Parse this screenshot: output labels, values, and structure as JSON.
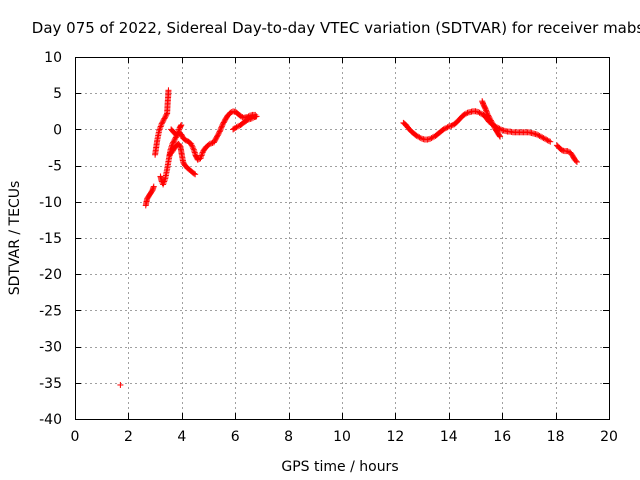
{
  "chart_data": {
    "type": "scatter",
    "title": "Day 075 of 2022, Sidereal Day-to-day VTEC variation (SDTVAR) for receiver mabs",
    "xlabel": "GPS time / hours",
    "ylabel": "SDTVAR / TECUs",
    "xlim": [
      0,
      20
    ],
    "ylim": [
      -40,
      10
    ],
    "xticks": [
      0,
      2,
      4,
      6,
      8,
      10,
      12,
      14,
      16,
      18,
      20
    ],
    "yticks": [
      -40,
      -35,
      -30,
      -25,
      -20,
      -15,
      -10,
      -5,
      0,
      5,
      10
    ],
    "grid": true,
    "marker": "+",
    "series_color": "#ff0000",
    "segments": [
      [
        [
          1.7,
          -35.3
        ]
      ],
      [
        [
          2.65,
          -10.5
        ],
        [
          2.7,
          -9.6
        ],
        [
          2.8,
          -9.0
        ],
        [
          2.9,
          -8.4
        ],
        [
          2.95,
          -7.9
        ]
      ],
      [
        [
          3.0,
          -3.5
        ],
        [
          3.08,
          -1.5
        ],
        [
          3.15,
          -0.2
        ],
        [
          3.25,
          0.8
        ],
        [
          3.35,
          1.5
        ],
        [
          3.45,
          2.2
        ],
        [
          3.47,
          3.6
        ],
        [
          3.49,
          4.6
        ],
        [
          3.5,
          5.4
        ]
      ],
      [
        [
          3.2,
          -6.5
        ],
        [
          3.25,
          -7.2
        ],
        [
          3.3,
          -7.6
        ],
        [
          3.38,
          -6.8
        ],
        [
          3.45,
          -5.5
        ],
        [
          3.52,
          -4.0
        ],
        [
          3.58,
          -2.8
        ],
        [
          3.65,
          -2.0
        ],
        [
          3.75,
          -1.3
        ],
        [
          3.85,
          -0.6
        ],
        [
          3.92,
          0.2
        ],
        [
          3.98,
          0.6
        ]
      ],
      [
        [
          3.55,
          -3.5
        ],
        [
          3.65,
          -3.0
        ],
        [
          3.72,
          -2.6
        ],
        [
          3.8,
          -2.2
        ],
        [
          3.88,
          -2.0
        ],
        [
          3.95,
          -2.4
        ],
        [
          4.0,
          -3.5
        ],
        [
          4.05,
          -4.5
        ],
        [
          4.12,
          -5.0
        ],
        [
          4.2,
          -5.3
        ],
        [
          4.3,
          -5.6
        ],
        [
          4.42,
          -6.0
        ],
        [
          4.5,
          -6.2
        ]
      ],
      [
        [
          3.6,
          0.0
        ],
        [
          3.7,
          -0.4
        ],
        [
          3.8,
          -0.8
        ],
        [
          3.9,
          -0.4
        ],
        [
          3.98,
          -0.7
        ],
        [
          4.05,
          -1.2
        ],
        [
          4.15,
          -1.5
        ],
        [
          4.25,
          -1.7
        ],
        [
          4.35,
          -2.0
        ],
        [
          4.45,
          -2.8
        ],
        [
          4.52,
          -3.6
        ],
        [
          4.6,
          -4.2
        ],
        [
          4.7,
          -4.0
        ],
        [
          4.8,
          -3.0
        ],
        [
          4.92,
          -2.4
        ],
        [
          5.05,
          -2.0
        ],
        [
          5.2,
          -1.8
        ],
        [
          5.32,
          -1.0
        ],
        [
          5.42,
          -0.3
        ],
        [
          5.52,
          0.6
        ],
        [
          5.62,
          1.3
        ],
        [
          5.72,
          1.9
        ],
        [
          5.82,
          2.3
        ],
        [
          5.92,
          2.5
        ],
        [
          6.02,
          2.4
        ],
        [
          6.12,
          2.1
        ],
        [
          6.22,
          1.8
        ],
        [
          6.32,
          1.6
        ],
        [
          6.45,
          1.7
        ],
        [
          6.55,
          1.9
        ],
        [
          6.65,
          2.0
        ],
        [
          6.75,
          2.0
        ]
      ],
      [
        [
          5.92,
          0.0
        ],
        [
          6.0,
          0.2
        ],
        [
          6.1,
          0.4
        ],
        [
          6.2,
          0.6
        ],
        [
          6.3,
          0.9
        ],
        [
          6.42,
          1.2
        ],
        [
          6.52,
          1.4
        ],
        [
          6.62,
          1.5
        ],
        [
          6.72,
          1.7
        ],
        [
          6.8,
          1.8
        ]
      ],
      [
        [
          12.3,
          0.9
        ],
        [
          12.4,
          0.6
        ],
        [
          12.5,
          0.1
        ],
        [
          12.6,
          -0.3
        ],
        [
          12.7,
          -0.6
        ],
        [
          12.8,
          -0.9
        ],
        [
          12.9,
          -1.1
        ],
        [
          13.0,
          -1.3
        ],
        [
          13.1,
          -1.4
        ],
        [
          13.2,
          -1.4
        ],
        [
          13.3,
          -1.3
        ],
        [
          13.4,
          -1.1
        ],
        [
          13.5,
          -0.9
        ],
        [
          13.6,
          -0.6
        ],
        [
          13.7,
          -0.3
        ],
        [
          13.8,
          0.0
        ],
        [
          13.9,
          0.2
        ],
        [
          14.0,
          0.4
        ],
        [
          14.1,
          0.5
        ],
        [
          14.2,
          0.7
        ],
        [
          14.3,
          1.0
        ],
        [
          14.4,
          1.4
        ],
        [
          14.5,
          1.8
        ],
        [
          14.6,
          2.1
        ],
        [
          14.7,
          2.3
        ],
        [
          14.8,
          2.4
        ],
        [
          14.9,
          2.5
        ],
        [
          15.0,
          2.5
        ],
        [
          15.1,
          2.4
        ],
        [
          15.2,
          2.2
        ],
        [
          15.3,
          2.0
        ],
        [
          15.4,
          1.6
        ],
        [
          15.5,
          1.1
        ],
        [
          15.6,
          0.8
        ],
        [
          15.7,
          0.5
        ],
        [
          15.8,
          0.3
        ],
        [
          15.9,
          0.1
        ],
        [
          16.0,
          -0.1
        ],
        [
          16.1,
          -0.2
        ],
        [
          16.2,
          -0.3
        ],
        [
          16.3,
          -0.3
        ],
        [
          16.4,
          -0.4
        ],
        [
          16.5,
          -0.4
        ],
        [
          16.6,
          -0.4
        ],
        [
          16.7,
          -0.4
        ],
        [
          16.8,
          -0.4
        ],
        [
          16.9,
          -0.4
        ],
        [
          17.0,
          -0.4
        ],
        [
          17.1,
          -0.5
        ],
        [
          17.2,
          -0.6
        ],
        [
          17.3,
          -0.7
        ],
        [
          17.4,
          -0.9
        ],
        [
          17.5,
          -1.1
        ],
        [
          17.6,
          -1.3
        ],
        [
          17.7,
          -1.5
        ],
        [
          17.8,
          -1.7
        ]
      ],
      [
        [
          15.25,
          3.9
        ],
        [
          15.3,
          3.4
        ],
        [
          15.38,
          2.8
        ],
        [
          15.45,
          2.1
        ],
        [
          15.55,
          1.4
        ],
        [
          15.65,
          0.7
        ],
        [
          15.75,
          0.0
        ],
        [
          15.85,
          -0.6
        ],
        [
          15.92,
          -1.0
        ]
      ],
      [
        [
          18.05,
          -2.2
        ],
        [
          18.15,
          -2.6
        ],
        [
          18.25,
          -2.9
        ],
        [
          18.35,
          -3.0
        ],
        [
          18.45,
          -3.0
        ],
        [
          18.55,
          -3.2
        ],
        [
          18.65,
          -3.7
        ],
        [
          18.72,
          -4.2
        ],
        [
          18.8,
          -4.5
        ]
      ]
    ]
  }
}
